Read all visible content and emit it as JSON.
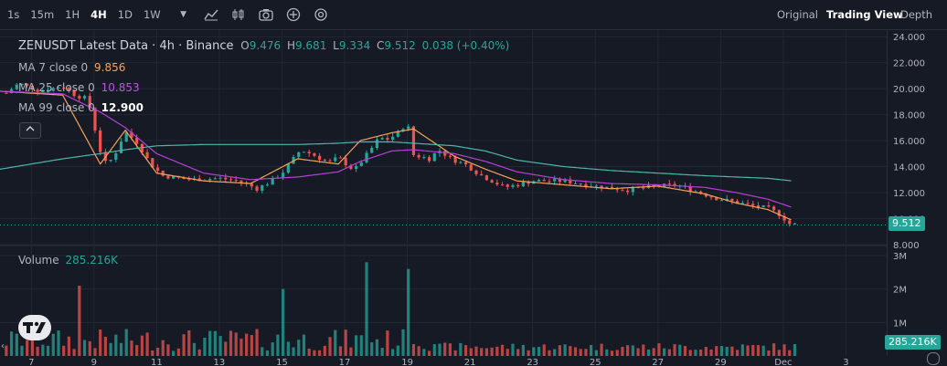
{
  "toolbar": {
    "timeframes": [
      "1s",
      "15m",
      "1H",
      "4H",
      "1D",
      "1W"
    ],
    "active_timeframe": "4H",
    "views": [
      "Original",
      "Trading View",
      "Depth"
    ],
    "active_view": "Trading View"
  },
  "legend": {
    "symbol": "ZENUSDT Latest Data · 4h · Binance",
    "o_label": "O",
    "o_value": "9.476",
    "h_label": "H",
    "h_value": "9.681",
    "l_label": "L",
    "l_value": "9.334",
    "c_label": "C",
    "c_value": "9.512",
    "change": "0.038 (+0.40%)",
    "ma7_label": "MA 7 close 0",
    "ma7_value": "9.856",
    "ma25_label": "MA 25 close 0",
    "ma25_value": "10.853",
    "ma99_label": "MA 99 close 0",
    "ma99_value": "12.900",
    "volume_label": "Volume",
    "volume_value": "285.216K"
  },
  "tags": {
    "price": "9.512",
    "volume": "285.216K"
  },
  "colors": {
    "up": "#26a69a",
    "down": "#ef5350",
    "ma7": "#f5a35b",
    "ma25": "#b640d6",
    "ma99": "#4db6ac",
    "background": "#161a25"
  },
  "chart_data": [
    {
      "type": "candlestick",
      "title": "ZENUSDT Latest Data · 4h · Binance",
      "yticks": [
        "24.000",
        "22.000",
        "20.000",
        "18.000",
        "16.000",
        "14.000",
        "12.000",
        "10.000",
        "8.000"
      ],
      "ylim": [
        8,
        24.5
      ],
      "xticks": [
        "7",
        "9",
        "11",
        "13",
        "15",
        "17",
        "19",
        "21",
        "23",
        "25",
        "27",
        "29",
        "Dec",
        "3"
      ],
      "xlim": [
        6.0,
        34.3
      ],
      "tick_days": [
        7,
        9,
        11,
        13,
        15,
        17,
        19,
        21,
        23,
        25,
        27,
        29,
        31,
        33
      ],
      "last_close": 9.512,
      "ma_anchor_days": [
        6.0,
        8.0,
        9.2,
        10.0,
        11.0,
        12.5,
        14.0,
        15.5,
        16.8,
        17.5,
        18.5,
        19.2,
        20.5,
        21.5,
        22.5,
        24.0,
        25.5,
        27.0,
        28.5,
        29.5,
        30.5,
        31.3
      ],
      "ma_values": [
        {
          "name": "MA 7",
          "values": [
            19.8,
            19.5,
            14.2,
            16.8,
            13.5,
            12.9,
            12.7,
            14.6,
            14.2,
            16.0,
            16.6,
            16.9,
            14.8,
            13.8,
            12.9,
            12.6,
            12.3,
            12.5,
            11.9,
            11.2,
            10.7,
            9.86
          ]
        },
        {
          "name": "MA 25",
          "values": [
            19.8,
            19.6,
            18.2,
            17.0,
            15.0,
            13.5,
            13.0,
            13.2,
            13.6,
            14.4,
            15.2,
            15.3,
            15.0,
            14.4,
            13.6,
            13.0,
            12.7,
            12.6,
            12.4,
            12.0,
            11.5,
            10.85
          ]
        },
        {
          "name": "MA 99",
          "values": [
            13.8,
            14.6,
            15.0,
            15.3,
            15.6,
            15.7,
            15.7,
            15.7,
            15.8,
            15.9,
            15.9,
            15.8,
            15.6,
            15.2,
            14.5,
            14.0,
            13.7,
            13.5,
            13.3,
            13.2,
            13.1,
            12.9
          ]
        }
      ],
      "price_anchor_days": [
        6.0,
        6.6,
        7.3,
        8.0,
        8.4,
        8.8,
        9.3,
        9.6,
        10.0,
        10.4,
        10.8,
        11.2,
        12.0,
        13.0,
        13.6,
        14.2,
        14.6,
        15.0,
        15.6,
        16.0,
        16.5,
        16.8,
        17.3,
        17.8,
        18.1,
        18.4,
        18.7,
        19.0,
        19.2,
        19.7,
        20.0,
        20.4,
        20.9,
        21.3,
        21.7,
        22.1,
        22.5,
        23.0,
        24.0,
        25.0,
        26.0,
        27.0,
        27.6,
        28.2,
        28.8,
        29.4,
        30.0,
        30.5,
        30.9,
        31.2,
        31.5
      ],
      "price_anchor_values": [
        19.3,
        20.4,
        19.8,
        20.2,
        19.5,
        19.2,
        14.2,
        14.6,
        16.7,
        15.8,
        14.2,
        13.3,
        13.0,
        13.1,
        12.9,
        12.3,
        12.8,
        13.5,
        15.3,
        14.9,
        14.3,
        14.7,
        13.7,
        15.2,
        16.2,
        16.1,
        16.6,
        17.4,
        14.9,
        14.6,
        15.3,
        14.6,
        14.1,
        13.4,
        12.9,
        12.4,
        12.6,
        12.9,
        12.9,
        12.5,
        12.2,
        12.5,
        12.6,
        12.1,
        11.6,
        11.3,
        11.0,
        10.8,
        10.3,
        9.6,
        9.512
      ],
      "volume": {
        "label": "Volume",
        "yticks": [
          "3M",
          "2M",
          "1M"
        ],
        "ylim": [
          0,
          3.0
        ],
        "tall_bars_days": [
          8.5,
          15.0,
          17.7,
          19.1
        ],
        "tall_bars_values": [
          2.1,
          2.0,
          2.8,
          2.6
        ],
        "last_volume": "285.216K"
      }
    }
  ]
}
